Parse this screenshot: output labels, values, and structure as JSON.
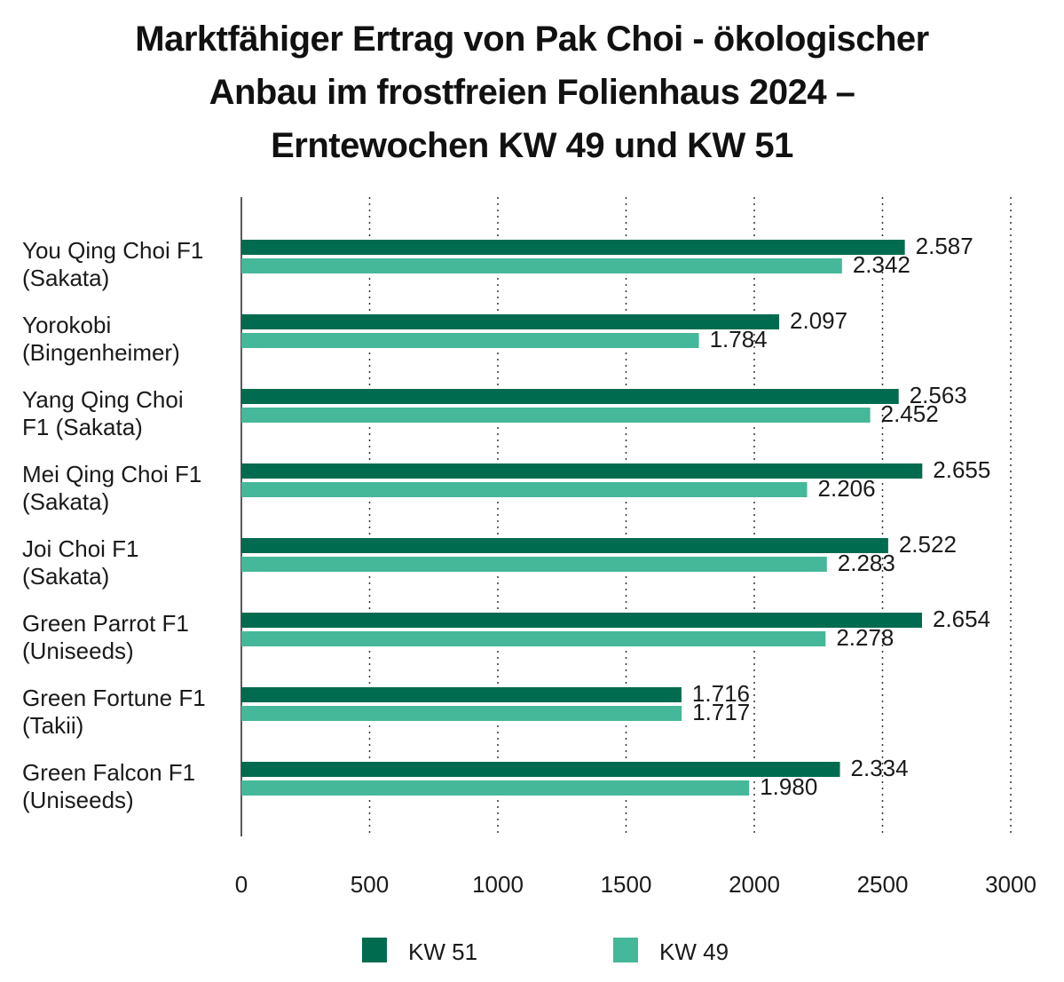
{
  "chart_data": {
    "type": "bar",
    "orientation": "horizontal",
    "title_lines": [
      "Marktfähiger Ertrag von Pak Choi - ökologischer",
      "Anbau im frostfreien Folienhaus 2024 –",
      "Erntewochen KW 49 und KW 51"
    ],
    "categories": [
      [
        "You Qing Choi F1",
        "(Sakata)"
      ],
      [
        "Yorokobi",
        "(Bingenheimer)"
      ],
      [
        "Yang Qing Choi",
        "F1 (Sakata)"
      ],
      [
        "Mei Qing Choi F1",
        "(Sakata)"
      ],
      [
        "Joi Choi F1",
        "(Sakata)"
      ],
      [
        "Green Parrot F1",
        "(Uniseeds)"
      ],
      [
        "Green Fortune F1",
        "(Takii)"
      ],
      [
        "Green Falcon F1",
        "(Uniseeds)"
      ]
    ],
    "series": [
      {
        "name": "KW 51",
        "color": "#006b4f",
        "values": [
          2587,
          2097,
          2563,
          2655,
          2522,
          2654,
          1716,
          2334
        ],
        "labels": [
          "2.587",
          "2.097",
          "2.563",
          "2.655",
          "2.522",
          "2.654",
          "1.716",
          "2.334"
        ]
      },
      {
        "name": "KW 49",
        "color": "#45b899",
        "values": [
          2342,
          1784,
          2452,
          2206,
          2283,
          2278,
          1717,
          1980
        ],
        "labels": [
          "2.342",
          "1.784",
          "2.452",
          "2.206",
          "2.283",
          "2.278",
          "1.717",
          "1.980"
        ]
      }
    ],
    "xlim": [
      0,
      3000
    ],
    "xticks": [
      0,
      500,
      1000,
      1500,
      2000,
      2500,
      3000
    ],
    "grid": "vertical-dotted",
    "legend_position": "bottom"
  }
}
